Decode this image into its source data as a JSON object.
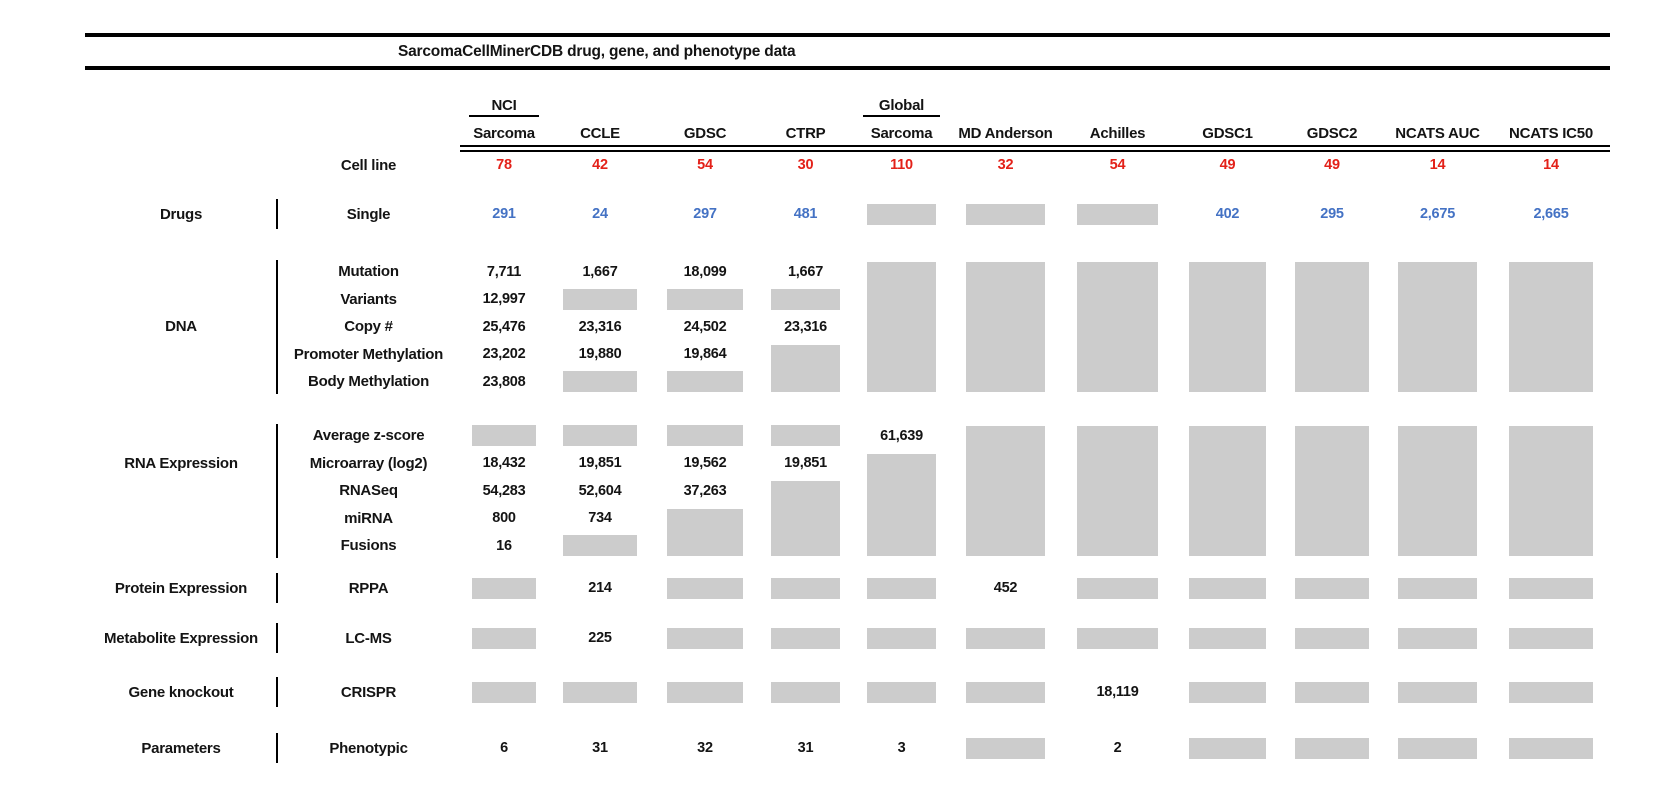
{
  "title": "SarcomaCellMinerCDB drug, gene, and phenotype data",
  "colors": {
    "cell_line_count": "#e32119",
    "drug_count": "#4472c4",
    "missing_data_box": "#cccccc",
    "text": "#141414"
  },
  "chart_data": {
    "type": "table",
    "title": "SarcomaCellMinerCDB drug, gene, and phenotype data",
    "columns": [
      {
        "group": "NCI",
        "label": "Sarcoma"
      },
      {
        "label": "CCLE"
      },
      {
        "label": "GDSC"
      },
      {
        "label": "CTRP"
      },
      {
        "group": "Global",
        "label": "Sarcoma"
      },
      {
        "label": "MD Anderson"
      },
      {
        "label": "Achilles"
      },
      {
        "label": "GDSC1"
      },
      {
        "label": "GDSC2"
      },
      {
        "label": "NCATS AUC"
      },
      {
        "label": "NCATS IC50"
      }
    ],
    "cell_line_row": {
      "label": "Cell line",
      "values": [
        "78",
        "42",
        "54",
        "30",
        "110",
        "32",
        "54",
        "49",
        "49",
        "14",
        "14"
      ]
    },
    "missing_token": "BOX",
    "sections": [
      {
        "category": "Drugs",
        "value_color": "drug_count",
        "rows": [
          {
            "label": "Single",
            "cells": [
              "291",
              "24",
              "297",
              "481",
              "BOX",
              "BOX",
              "BOX",
              "402",
              "295",
              "2,675",
              "2,665"
            ]
          }
        ],
        "blocks": []
      },
      {
        "category": "DNA",
        "rows": [
          {
            "label": "Mutation",
            "cells": [
              "7,711",
              "1,667",
              "18,099",
              "1,667",
              "",
              "",
              "",
              "",
              "",
              "",
              ""
            ]
          },
          {
            "label": "Variants",
            "cells": [
              "12,997",
              "BOX",
              "BOX",
              "BOX",
              "",
              "",
              "",
              "",
              "",
              "",
              ""
            ]
          },
          {
            "label": "Copy #",
            "cells": [
              "25,476",
              "23,316",
              "24,502",
              "23,316",
              "",
              "",
              "",
              "",
              "",
              "",
              ""
            ]
          },
          {
            "label": "Promoter Methylation",
            "cells": [
              "23,202",
              "19,880",
              "19,864",
              "",
              "",
              "",
              "",
              "",
              "",
              "",
              ""
            ]
          },
          {
            "label": "Body Methylation",
            "cells": [
              "23,808",
              "BOX",
              "BOX",
              "",
              "",
              "",
              "",
              "",
              "",
              "",
              ""
            ]
          }
        ],
        "blocks": [
          {
            "col": 3,
            "row": 4,
            "span": 2
          },
          {
            "col": 4,
            "row": 1,
            "span": 5
          },
          {
            "col": 5,
            "row": 1,
            "span": 5
          },
          {
            "col": 6,
            "row": 1,
            "span": 5
          },
          {
            "col": 7,
            "row": 1,
            "span": 5
          },
          {
            "col": 8,
            "row": 1,
            "span": 5
          },
          {
            "col": 9,
            "row": 1,
            "span": 5
          },
          {
            "col": 10,
            "row": 1,
            "span": 5
          }
        ]
      },
      {
        "category": "RNA Expression",
        "rows": [
          {
            "label": "Average z-score",
            "cells": [
              "BOX",
              "BOX",
              "BOX",
              "BOX",
              "61,639",
              "",
              "",
              "",
              "",
              "",
              ""
            ]
          },
          {
            "label": "Microarray (log2)",
            "cells": [
              "18,432",
              "19,851",
              "19,562",
              "19,851",
              "",
              "",
              "",
              "",
              "",
              "",
              ""
            ]
          },
          {
            "label": "RNASeq",
            "cells": [
              "54,283",
              "52,604",
              "37,263",
              "",
              "",
              "",
              "",
              "",
              "",
              "",
              ""
            ]
          },
          {
            "label": "miRNA",
            "cells": [
              "800",
              "734",
              "",
              "",
              "",
              "",
              "",
              "",
              "",
              "",
              ""
            ]
          },
          {
            "label": "Fusions",
            "cells": [
              "16",
              "BOX",
              "",
              "",
              "",
              "",
              "",
              "",
              "",
              "",
              ""
            ]
          }
        ],
        "blocks": [
          {
            "col": 2,
            "row": 4,
            "span": 2
          },
          {
            "col": 3,
            "row": 3,
            "span": 3
          },
          {
            "col": 4,
            "row": 2,
            "span": 4
          },
          {
            "col": 5,
            "row": 1,
            "span": 5
          },
          {
            "col": 6,
            "row": 1,
            "span": 5
          },
          {
            "col": 7,
            "row": 1,
            "span": 5
          },
          {
            "col": 8,
            "row": 1,
            "span": 5
          },
          {
            "col": 9,
            "row": 1,
            "span": 5
          },
          {
            "col": 10,
            "row": 1,
            "span": 5
          }
        ]
      },
      {
        "category": "Protein Expression",
        "rows": [
          {
            "label": "RPPA",
            "cells": [
              "BOX",
              "214",
              "BOX",
              "BOX",
              "BOX",
              "452",
              "BOX",
              "BOX",
              "BOX",
              "BOX",
              "BOX"
            ]
          }
        ],
        "blocks": []
      },
      {
        "category": "Metabolite Expression",
        "rows": [
          {
            "label": "LC-MS",
            "cells": [
              "BOX",
              "225",
              "BOX",
              "BOX",
              "BOX",
              "BOX",
              "BOX",
              "BOX",
              "BOX",
              "BOX",
              "BOX"
            ]
          }
        ],
        "blocks": []
      },
      {
        "category": "Gene knockout",
        "rows": [
          {
            "label": "CRISPR",
            "cells": [
              "BOX",
              "BOX",
              "BOX",
              "BOX",
              "BOX",
              "BOX",
              "18,119",
              "BOX",
              "BOX",
              "BOX",
              "BOX"
            ]
          }
        ],
        "blocks": []
      },
      {
        "category": "Parameters",
        "rows": [
          {
            "label": "Phenotypic",
            "cells": [
              "6",
              "31",
              "32",
              "31",
              "3",
              "BOX",
              "2",
              "BOX",
              "BOX",
              "BOX",
              "BOX"
            ]
          }
        ],
        "blocks": []
      }
    ]
  }
}
